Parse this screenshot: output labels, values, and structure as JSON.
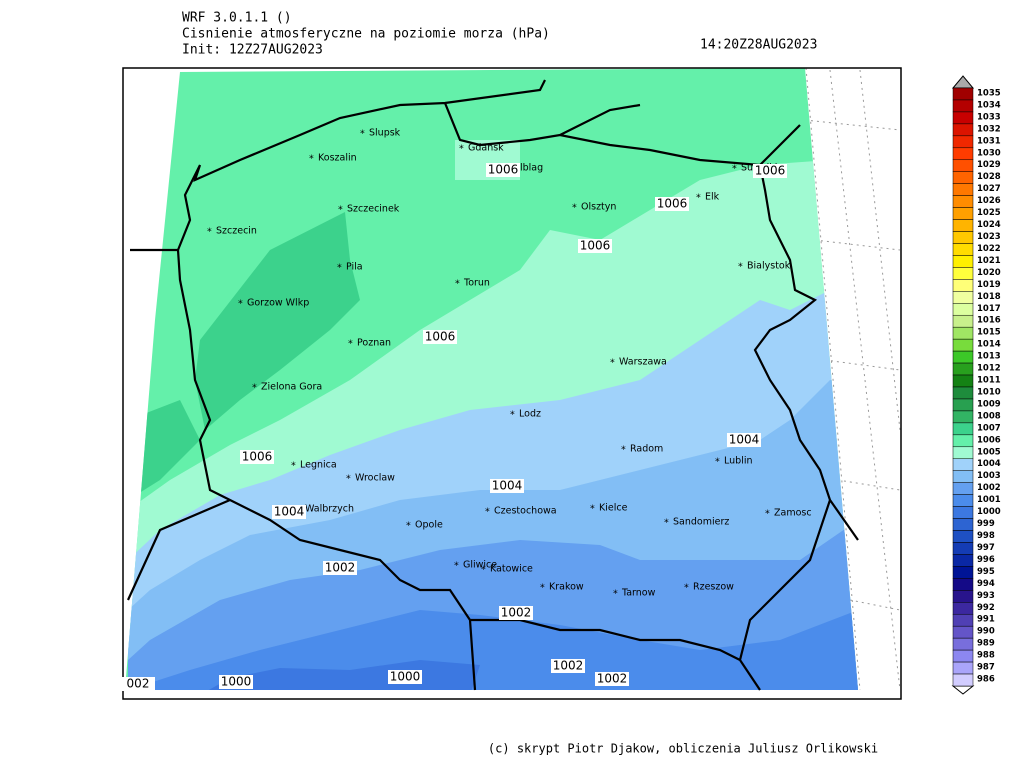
{
  "header": {
    "model": "WRF 3.0.1.1 ()",
    "title": "Cisnienie atmosferyczne na poziomie morza (hPa)",
    "init": "Init: 12Z27AUG2023",
    "valid": "14:20Z28AUG2023"
  },
  "cities": [
    "Slupsk",
    "Koszalin",
    "Gdansk",
    "Elblag",
    "Suwalki",
    "Elk",
    "Olsztyn",
    "Szczecinek",
    "Szczecin",
    "Pila",
    "Bialystok",
    "Torun",
    "Gorzow Wlkp",
    "Poznan",
    "Warszawa",
    "Zielona Gora",
    "Lodz",
    "Radom",
    "Lublin",
    "Legnica",
    "Wroclaw",
    "Walbrzych",
    "Opole",
    "Czestochowa",
    "Kielce",
    "Sandomierz",
    "Zamosc",
    "Gliwice",
    "Katowice",
    "Krakow",
    "Tarnow",
    "Rzeszow"
  ],
  "contour_labels": [
    1006,
    1006,
    1006,
    1006,
    1006,
    1006,
    1004,
    1004,
    1004,
    1002,
    1002,
    1002,
    1002,
    1000,
    1000,
    "002"
  ],
  "colorbar": {
    "levels": [
      1035,
      1034,
      1033,
      1032,
      1031,
      1030,
      1029,
      1028,
      1027,
      1026,
      1025,
      1024,
      1023,
      1022,
      1021,
      1020,
      1019,
      1018,
      1017,
      1016,
      1015,
      1014,
      1013,
      1012,
      1011,
      1010,
      1009,
      1008,
      1007,
      1006,
      1005,
      1004,
      1003,
      1002,
      1001,
      1000,
      999,
      998,
      997,
      996,
      995,
      994,
      993,
      992,
      991,
      990,
      989,
      988,
      987,
      986
    ],
    "colors": [
      "#a00000",
      "#b40000",
      "#c80000",
      "#dc1400",
      "#f02800",
      "#ff3c00",
      "#ff5000",
      "#ff6400",
      "#ff7800",
      "#ff8c00",
      "#ffa000",
      "#ffb400",
      "#ffc800",
      "#ffdc00",
      "#fff000",
      "#ffff3c",
      "#ffff78",
      "#f0ffa0",
      "#dcffa0",
      "#c8f08c",
      "#a0e664",
      "#78dc3c",
      "#3cc828",
      "#28a01e",
      "#148214",
      "#1e8c3c",
      "#28a050",
      "#32b464",
      "#3cd28c",
      "#64f0aa",
      "#a0fad2",
      "#a0d2fa",
      "#82bef5",
      "#64a0f0",
      "#4b8ceb",
      "#3c78e1",
      "#2d64d2",
      "#1e50c3",
      "#143cb4",
      "#0a28a5",
      "#001496",
      "#140a87",
      "#28148c",
      "#3c28a0",
      "#5040b4",
      "#6455c8",
      "#786edc",
      "#8c87f0",
      "#aaa5fa",
      "#d2cdff"
    ]
  },
  "footer": "(c) skrypt Piotr Djakow, obliczenia Juliusz Orlikowski"
}
